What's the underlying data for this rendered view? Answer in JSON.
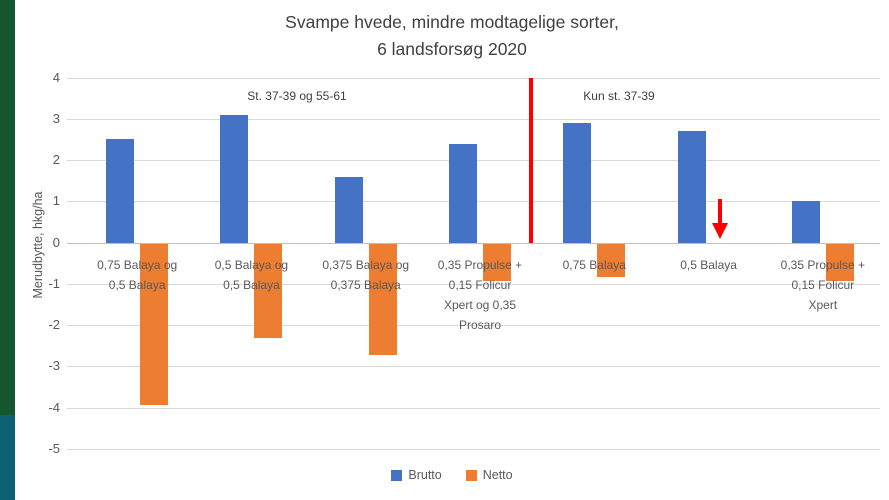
{
  "window": {
    "sidebar_green": "#15562e",
    "sidebar_teal": "#0d6271"
  },
  "chart_data": {
    "type": "bar",
    "title": "Svampe hvede, mindre modtagelige sorter,",
    "subtitle": "6 landsforsøg 2020",
    "ylabel": "Merudbytte, hkg/ha",
    "ylim": [
      -5,
      4
    ],
    "yticks": [
      4,
      3,
      2,
      1,
      0,
      -1,
      -2,
      -3,
      -4,
      -5
    ],
    "grid": true,
    "categories": [
      "0,75 Balaya og\n0,5 Balaya",
      "0,5 Balaya og\n0,5 Balaya",
      "0,375 Balaya og\n0,375 Balaya",
      "0,35 Propulse +\n0,15 Folicur\nXpert og 0,35\nProsaro",
      "0,75 Balaya",
      "0,5 Balaya",
      "0,35 Propulse +\n0,15 Folicur\nXpert"
    ],
    "series": [
      {
        "name": "Brutto",
        "color": "#4472C4",
        "values": [
          2.5,
          3.1,
          1.6,
          2.4,
          2.9,
          2.7,
          1.0
        ]
      },
      {
        "name": "Netto",
        "color": "#ED7D31",
        "values": [
          -3.9,
          -2.3,
          -2.7,
          -0.9,
          -0.8,
          null,
          -0.9
        ]
      }
    ],
    "annotations": [
      {
        "text": "St. 37-39 og 55-61",
        "over": "groups 1-4"
      },
      {
        "text": "Kun st. 37-39",
        "over": "groups 5-7"
      }
    ],
    "divider_line": {
      "color": "#FF0000",
      "between_categories": [
        4,
        5
      ]
    },
    "netto_arrow": {
      "color": "#FF0000",
      "category_index": 5,
      "direction": "down"
    },
    "legend": {
      "position": "bottom-center",
      "entries": [
        {
          "label": "Brutto",
          "color": "#4472C4"
        },
        {
          "label": "Netto",
          "color": "#ED7D31"
        }
      ]
    }
  }
}
